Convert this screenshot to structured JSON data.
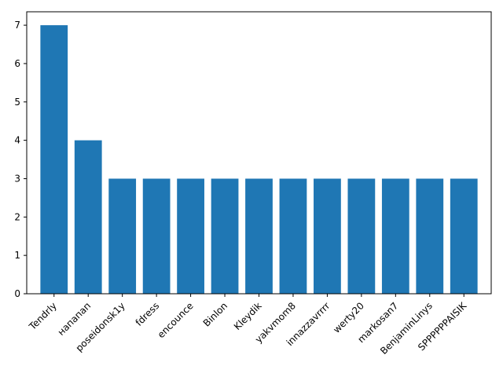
{
  "chart_data": {
    "type": "bar",
    "categories": [
      "Tendrly",
      "напапап",
      "poseidonsk1y",
      "fdress",
      "encounce",
      "Binlon",
      "Kleydik",
      "yakvmom8",
      "innazzavrrrr",
      "werty20",
      "markosan7",
      "BenjaminLinys",
      "SPPPPPPAISIK"
    ],
    "values": [
      7,
      4,
      3,
      3,
      3,
      3,
      3,
      3,
      3,
      3,
      3,
      3,
      3
    ],
    "yticks": [
      0,
      1,
      2,
      3,
      4,
      5,
      6,
      7
    ],
    "ylim": [
      0,
      7.35
    ],
    "bar_color": "#1f77b4",
    "grid": false,
    "title": "",
    "xlabel": "",
    "ylabel": ""
  }
}
